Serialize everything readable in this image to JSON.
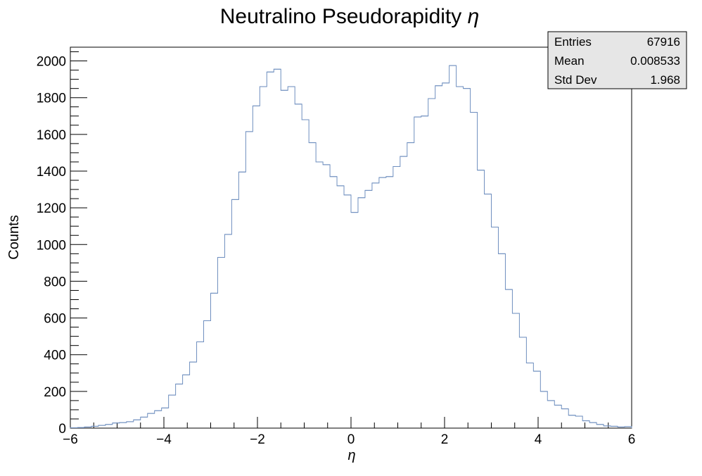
{
  "chart_data": {
    "type": "histogram",
    "title": "Neutralino Pseudorapidity η",
    "xlabel": "η",
    "ylabel": "Counts",
    "xlim": [
      -6,
      6
    ],
    "ylim": [
      0,
      2075
    ],
    "x_ticks": [
      -6,
      -4,
      -2,
      0,
      2,
      4,
      6
    ],
    "x_tick_labels": [
      "−6",
      "−4",
      "−2",
      "0",
      "2",
      "4",
      "6"
    ],
    "y_ticks": [
      0,
      200,
      400,
      600,
      800,
      1000,
      1200,
      1400,
      1600,
      1800,
      2000
    ],
    "y_tick_labels": [
      "0",
      "200",
      "400",
      "600",
      "800",
      "1000",
      "1200",
      "1400",
      "1600",
      "1800",
      "2000"
    ],
    "grid": false,
    "line_color": "#6f8fbf",
    "bin_width": 0.15,
    "bins": [
      {
        "x": -5.925,
        "y": 2
      },
      {
        "x": -5.775,
        "y": 3
      },
      {
        "x": -5.625,
        "y": 6
      },
      {
        "x": -5.475,
        "y": 10
      },
      {
        "x": -5.325,
        "y": 15
      },
      {
        "x": -5.175,
        "y": 20
      },
      {
        "x": -5.025,
        "y": 28
      },
      {
        "x": -4.875,
        "y": 30
      },
      {
        "x": -4.725,
        "y": 35
      },
      {
        "x": -4.575,
        "y": 45
      },
      {
        "x": -4.425,
        "y": 60
      },
      {
        "x": -4.275,
        "y": 80
      },
      {
        "x": -4.125,
        "y": 95
      },
      {
        "x": -3.975,
        "y": 110
      },
      {
        "x": -3.825,
        "y": 180
      },
      {
        "x": -3.675,
        "y": 240
      },
      {
        "x": -3.525,
        "y": 290
      },
      {
        "x": -3.375,
        "y": 360
      },
      {
        "x": -3.225,
        "y": 470
      },
      {
        "x": -3.075,
        "y": 585
      },
      {
        "x": -2.925,
        "y": 735
      },
      {
        "x": -2.775,
        "y": 930
      },
      {
        "x": -2.625,
        "y": 1055
      },
      {
        "x": -2.475,
        "y": 1245
      },
      {
        "x": -2.325,
        "y": 1395
      },
      {
        "x": -2.175,
        "y": 1615
      },
      {
        "x": -2.025,
        "y": 1755
      },
      {
        "x": -1.875,
        "y": 1860
      },
      {
        "x": -1.725,
        "y": 1940
      },
      {
        "x": -1.575,
        "y": 1955
      },
      {
        "x": -1.425,
        "y": 1840
      },
      {
        "x": -1.275,
        "y": 1860
      },
      {
        "x": -1.125,
        "y": 1765
      },
      {
        "x": -0.975,
        "y": 1680
      },
      {
        "x": -0.825,
        "y": 1555
      },
      {
        "x": -0.675,
        "y": 1450
      },
      {
        "x": -0.525,
        "y": 1435
      },
      {
        "x": -0.375,
        "y": 1370
      },
      {
        "x": -0.225,
        "y": 1320
      },
      {
        "x": -0.075,
        "y": 1270
      },
      {
        "x": 0.075,
        "y": 1175
      },
      {
        "x": 0.225,
        "y": 1255
      },
      {
        "x": 0.375,
        "y": 1295
      },
      {
        "x": 0.525,
        "y": 1335
      },
      {
        "x": 0.675,
        "y": 1365
      },
      {
        "x": 0.825,
        "y": 1370
      },
      {
        "x": 0.975,
        "y": 1425
      },
      {
        "x": 1.125,
        "y": 1480
      },
      {
        "x": 1.275,
        "y": 1555
      },
      {
        "x": 1.425,
        "y": 1695
      },
      {
        "x": 1.575,
        "y": 1700
      },
      {
        "x": 1.725,
        "y": 1795
      },
      {
        "x": 1.875,
        "y": 1865
      },
      {
        "x": 2.025,
        "y": 1880
      },
      {
        "x": 2.175,
        "y": 1975
      },
      {
        "x": 2.325,
        "y": 1860
      },
      {
        "x": 2.475,
        "y": 1850
      },
      {
        "x": 2.625,
        "y": 1720
      },
      {
        "x": 2.775,
        "y": 1405
      },
      {
        "x": 2.925,
        "y": 1275
      },
      {
        "x": 3.075,
        "y": 1095
      },
      {
        "x": 3.225,
        "y": 950
      },
      {
        "x": 3.375,
        "y": 755
      },
      {
        "x": 3.525,
        "y": 625
      },
      {
        "x": 3.675,
        "y": 495
      },
      {
        "x": 3.825,
        "y": 355
      },
      {
        "x": 3.975,
        "y": 310
      },
      {
        "x": 4.125,
        "y": 200
      },
      {
        "x": 4.275,
        "y": 150
      },
      {
        "x": 4.425,
        "y": 125
      },
      {
        "x": 4.575,
        "y": 105
      },
      {
        "x": 4.725,
        "y": 70
      },
      {
        "x": 4.875,
        "y": 65
      },
      {
        "x": 5.025,
        "y": 40
      },
      {
        "x": 5.175,
        "y": 30
      },
      {
        "x": 5.325,
        "y": 20
      },
      {
        "x": 5.475,
        "y": 12
      },
      {
        "x": 5.625,
        "y": 10
      },
      {
        "x": 5.775,
        "y": 6
      },
      {
        "x": 5.925,
        "y": 8
      }
    ]
  },
  "stats_box": {
    "entries_label": "Entries",
    "entries_value": "67916",
    "mean_label": "Mean",
    "mean_value": "0.008533",
    "stddev_label": "Std Dev",
    "stddev_value": "1.968",
    "fill_color": "#e6e6e6"
  }
}
